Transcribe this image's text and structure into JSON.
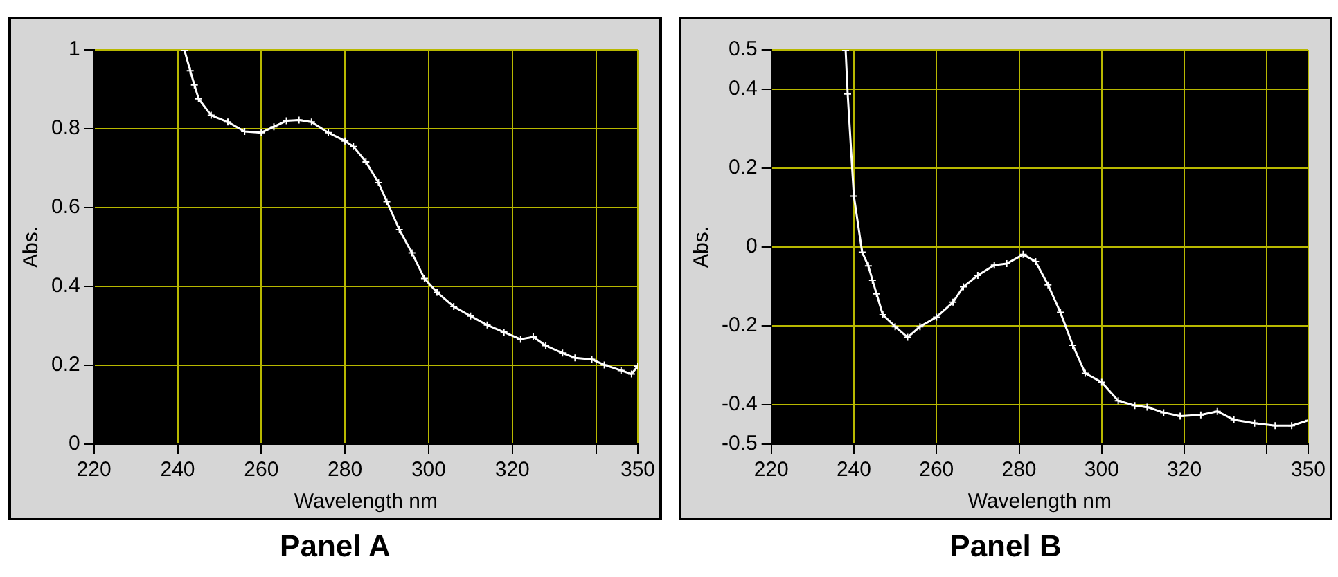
{
  "chart_data": [
    {
      "type": "line",
      "title": "Panel A",
      "xlabel": "Wavelength nm",
      "ylabel": "Abs.",
      "xlim": [
        220,
        350
      ],
      "ylim": [
        0,
        1
      ],
      "xticks": [
        220,
        240,
        260,
        280,
        300,
        320,
        {
          "value": 340,
          "label": null
        },
        350
      ],
      "yticks": [
        0,
        0.2,
        0.4,
        0.6,
        0.8,
        1
      ],
      "grid": true,
      "legend": false,
      "marker": "cross",
      "line_style": "solid",
      "series": [
        {
          "color": "#ffffff",
          "x": [
            241.6,
            243,
            244,
            245,
            248,
            252,
            256,
            260,
            263,
            266,
            269,
            272,
            276,
            280,
            282,
            285,
            288,
            290,
            293,
            296,
            299,
            302,
            306,
            310,
            314,
            318,
            322,
            325,
            328,
            332,
            335,
            339,
            342,
            346,
            348.5,
            350
          ],
          "values": [
            1.0,
            0.947,
            0.911,
            0.876,
            0.834,
            0.817,
            0.793,
            0.79,
            0.805,
            0.82,
            0.822,
            0.817,
            0.79,
            0.769,
            0.755,
            0.716,
            0.663,
            0.615,
            0.544,
            0.485,
            0.42,
            0.385,
            0.349,
            0.325,
            0.302,
            0.284,
            0.266,
            0.272,
            0.25,
            0.231,
            0.219,
            0.215,
            0.201,
            0.187,
            0.178,
            0.198
          ]
        }
      ]
    },
    {
      "type": "line",
      "title": "Panel B",
      "xlabel": "Wavelength nm",
      "ylabel": "Abs.",
      "xlim": [
        220,
        350
      ],
      "ylim": [
        -0.5,
        0.5
      ],
      "xticks": [
        220,
        240,
        260,
        280,
        300,
        320,
        {
          "value": 340,
          "label": null
        },
        350
      ],
      "yticks": [
        -0.5,
        -0.4,
        -0.2,
        0,
        0.2,
        0.4,
        0.5
      ],
      "grid": true,
      "legend": false,
      "marker": "cross",
      "line_style": "solid",
      "series": [
        {
          "color": "#ffffff",
          "x": [
            238,
            238.5,
            240,
            242,
            243.5,
            244.5,
            245.5,
            247,
            250,
            253,
            256,
            260,
            264,
            266.5,
            270,
            274,
            277,
            281,
            284,
            287,
            290,
            293,
            296,
            300,
            304,
            308,
            311,
            315,
            319,
            324,
            328,
            332,
            337,
            342,
            346,
            350
          ],
          "values": [
            0.5,
            0.388,
            0.129,
            -0.013,
            -0.048,
            -0.084,
            -0.119,
            -0.172,
            -0.202,
            -0.229,
            -0.202,
            -0.178,
            -0.14,
            -0.101,
            -0.072,
            -0.046,
            -0.042,
            -0.019,
            -0.037,
            -0.096,
            -0.166,
            -0.249,
            -0.32,
            -0.343,
            -0.39,
            -0.402,
            -0.406,
            -0.42,
            -0.429,
            -0.426,
            -0.417,
            -0.438,
            -0.447,
            -0.453,
            -0.453,
            -0.44
          ]
        }
      ]
    }
  ]
}
